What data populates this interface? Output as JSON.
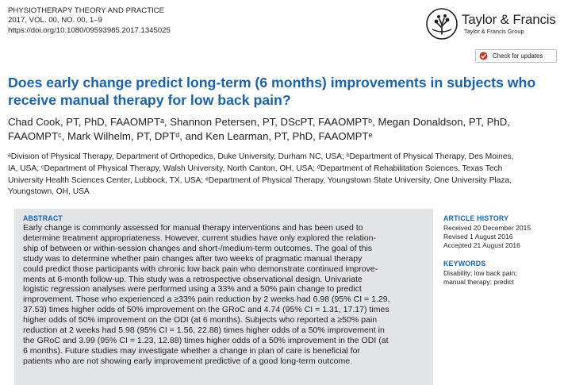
{
  "journal": {
    "name": "PHYSIOTHERAPY THEORY AND PRACTICE",
    "volume_line": "2017, VOL. 00, NO. 00, 1–9",
    "doi": "https://doi.org/10.1080/09593985.2017.1345025"
  },
  "publisher": {
    "name": "Taylor & Francis",
    "group": "Taylor & Francis Group",
    "logo_icon": "tree-of-knowledge-icon"
  },
  "check_updates": {
    "label": "Check for updates",
    "icon": "check-updates-icon"
  },
  "title_lines": [
    "Does early change predict long-term (6 months) improvements in subjects who",
    "receive manual therapy for low back pain?"
  ],
  "author_lines": [
    "Chad Cook, PT, PhD, FAAOMPTᵃ, Shannon Petersen, PT, DScPT, FAAOMPTᵇ, Megan Donaldson, PT, PhD,",
    "FAAOMPTᶜ, Mark Wilhelm, PT, DPTᵈ, and Ken Learman, PT, PhD, FAAOMPTᵉ"
  ],
  "affiliation_lines": [
    "ᵃDivision of Physical Therapy, Department of Orthopedics, Duke University, Durham NC, USA; ᵇDepartment of Physical Therapy, Des Moines,",
    "IA, USA; ᶜDepartment of Physical Therapy, Walsh University, North Canton, OH, USA; ᵈDepartment of Rehabilitation Sciences, Texas Tech",
    "University Health Sciences Center, Lubbock, TX, USA; ᵉDepartment of Physical Therapy, Youngstown State University, One University Plaza,",
    "Youngstown, OH, USA"
  ],
  "abstract": {
    "heading": "ABSTRACT",
    "lines": [
      "Early change is commonly assessed for manual therapy interventions and has been used to",
      "determine treatment appropriateness. However, current studies have only explored the relation-",
      "ship of between or within-session changes and short-/medium-term outcomes. The goal of this",
      "study was to determine whether pain changes after two weeks of pragmatic manual therapy",
      "could predict those participants with chronic low back pain who demonstrate continued improve-",
      "ments at 6-month follow-up. This study was a retrospective observational design. Univariate",
      "logistic regression analyses were performed using a 33% and a 50% pain change to predict",
      "improvement. Those who experienced a ≥33% pain reduction by 2 weeks had 6.98 (95% CI = 1.29,",
      "37.53) times higher odds of 50% improvement on the GRoC and 4.74 (95% CI = 1.31, 17.17) times",
      "higher odds of 50% improvement on the ODI (at 6 months). Subjects who reported a ≥50% pain",
      "reduction at 2 weeks had 5.98 (95% CI = 1.56, 22.88) times higher odds of a 50% improvement in",
      "the GRoC and 3.99 (95% CI = 1.23, 12.88) times higher odds of a 50% improvement in the ODI (at",
      "6 months). Future studies may investigate whether a change in plan of care is beneficial for",
      "patients who are not showing early improvement predictive of a good long-term outcome."
    ]
  },
  "article_history": {
    "heading": "ARTICLE HISTORY",
    "lines": [
      "Received 20 December 2015",
      "Revised 1 August 2016",
      "Accepted 21 August 2016"
    ]
  },
  "keywords": {
    "heading": "KEYWORDS",
    "lines": [
      "Disability; low back pain;",
      "manual therapy; predict"
    ]
  },
  "colors": {
    "title_blue": "#1c63a8",
    "abstract_bg": "#e3e4e5",
    "text": "#231f20"
  }
}
